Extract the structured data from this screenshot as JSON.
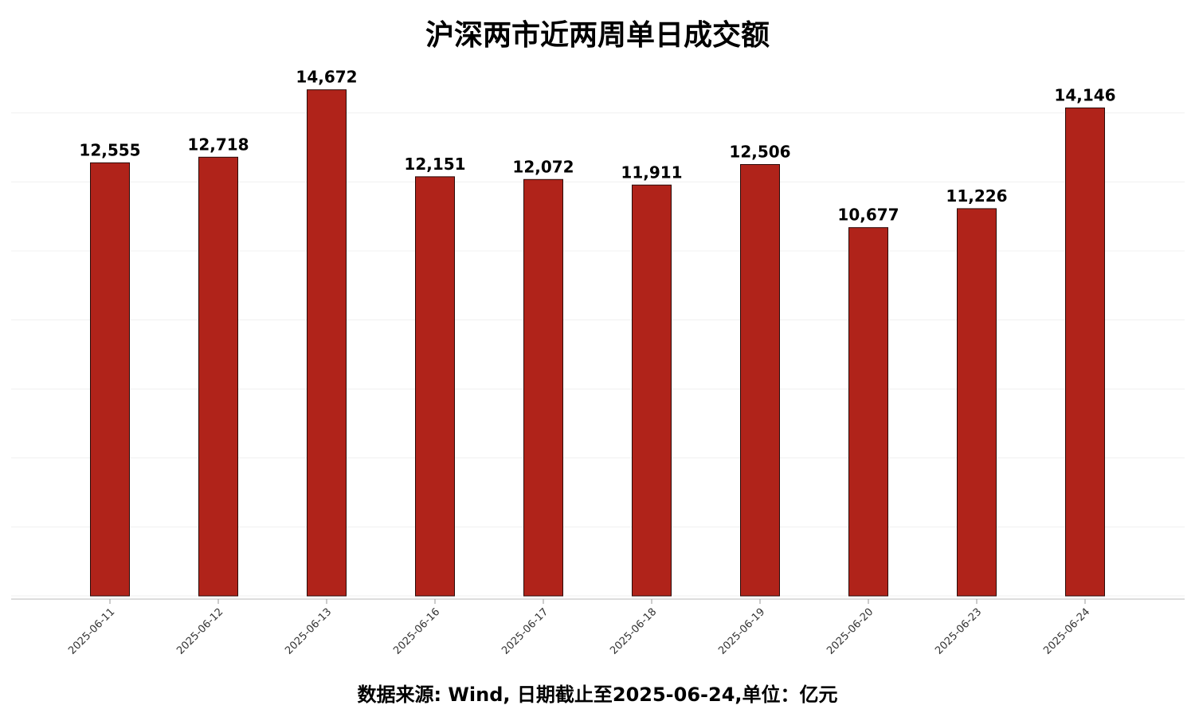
{
  "chart_data": {
    "type": "bar",
    "title": "沪深两市近两周单日成交额",
    "categories": [
      "2025-06-11",
      "2025-06-12",
      "2025-06-13",
      "2025-06-16",
      "2025-06-17",
      "2025-06-18",
      "2025-06-19",
      "2025-06-20",
      "2025-06-23",
      "2025-06-24"
    ],
    "values": [
      12555,
      12718,
      14672,
      12151,
      12072,
      11911,
      12506,
      10677,
      11226,
      14146
    ],
    "value_labels": [
      "12,555",
      "12,718",
      "14,672",
      "12,151",
      "12,072",
      "11,911",
      "12,506",
      "10,677",
      "11,226",
      "14,146"
    ],
    "color": "#b0231a",
    "ylim": [
      0,
      15000
    ],
    "yticks": [
      0,
      2000,
      4000,
      6000,
      8000,
      10000,
      12000,
      14000
    ],
    "grid": true,
    "caption": "数据来源: Wind, 日期截止至2025-06-24,单位：亿元"
  }
}
